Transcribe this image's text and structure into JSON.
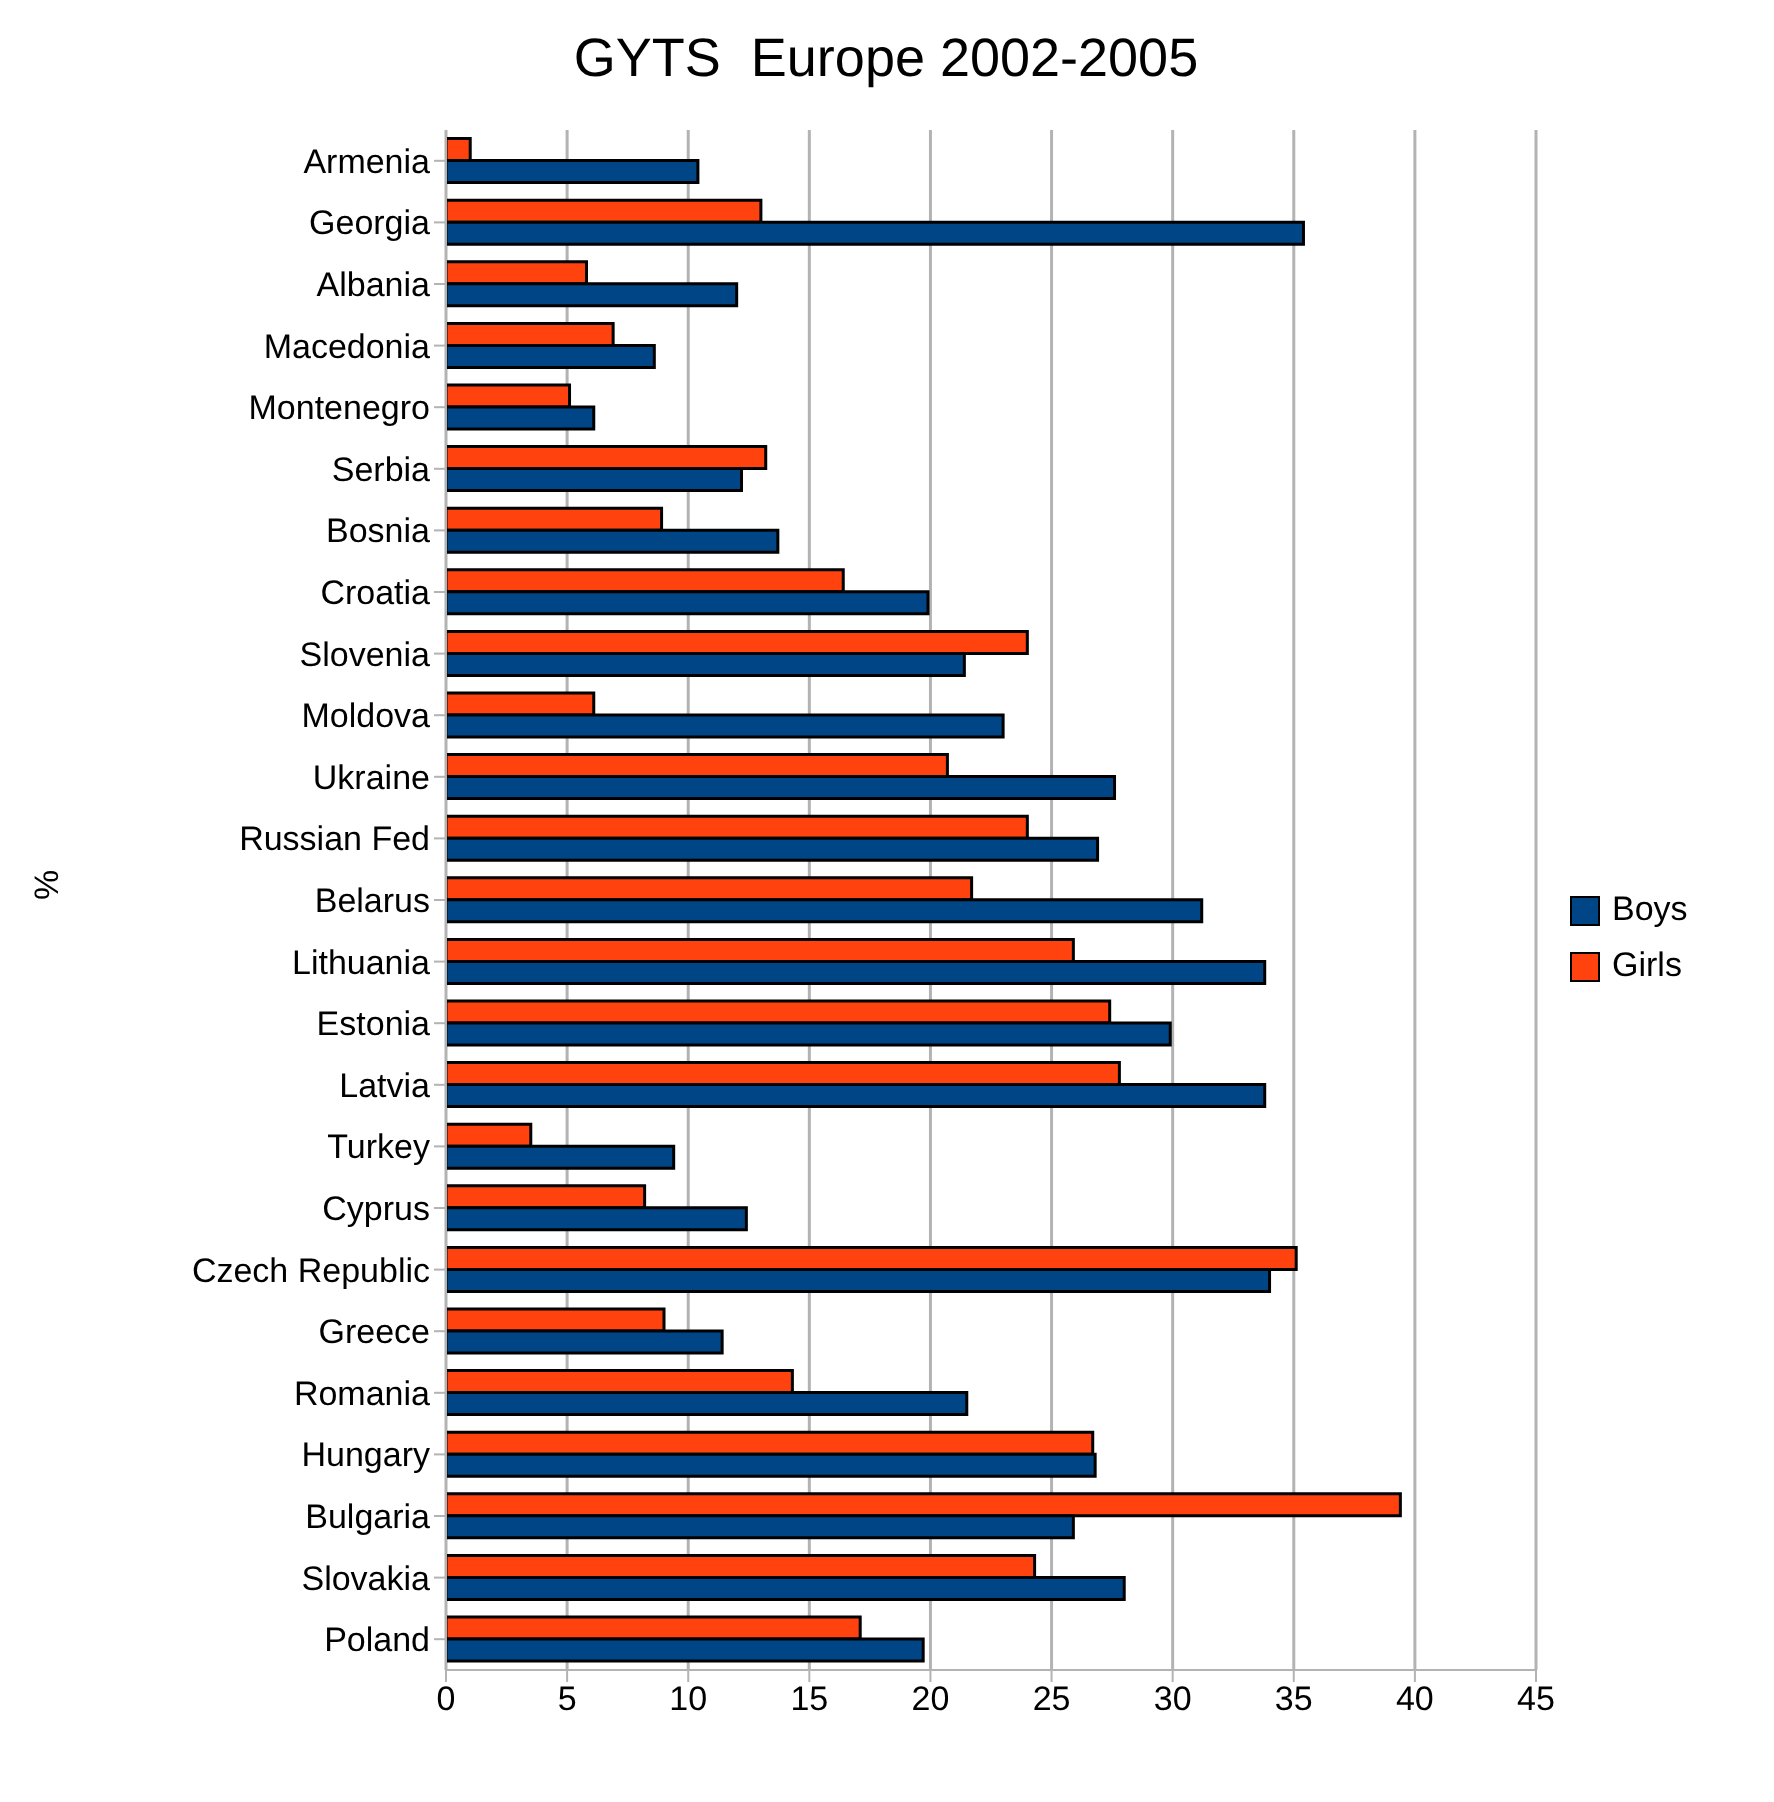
{
  "chart_data": {
    "type": "bar",
    "orientation": "horizontal",
    "title": "GYTS  Europe 2002-2005",
    "ylabel": "%",
    "categories": [
      "Armenia",
      "Georgia",
      "Albania",
      "Macedonia",
      "Montenegro",
      "Serbia",
      "Bosnia",
      "Croatia",
      "Slovenia",
      "Moldova",
      "Ukraine",
      "Russian Fed",
      "Belarus",
      "Lithuania",
      "Estonia",
      "Latvia",
      "Turkey",
      "Cyprus",
      "Czech Republic",
      "Greece",
      "Romania",
      "Hungary",
      "Bulgaria",
      "Slovakia",
      "Poland"
    ],
    "series": [
      {
        "name": "Boys",
        "color": "#004586",
        "values": [
          10.4,
          35.4,
          12.0,
          8.6,
          6.1,
          12.2,
          13.7,
          19.9,
          21.4,
          23.0,
          27.6,
          26.9,
          31.2,
          33.8,
          29.9,
          33.8,
          9.4,
          12.4,
          34.0,
          11.4,
          21.5,
          26.8,
          25.9,
          28.0,
          19.7
        ]
      },
      {
        "name": "Girls",
        "color": "#ff420e",
        "values": [
          1.0,
          13.0,
          5.8,
          6.9,
          5.1,
          13.2,
          8.9,
          16.4,
          24.0,
          6.1,
          20.7,
          24.0,
          21.7,
          25.9,
          27.4,
          27.8,
          3.5,
          8.2,
          35.1,
          9.0,
          14.3,
          26.7,
          39.4,
          24.3,
          17.1
        ]
      }
    ],
    "xlim": [
      0,
      45
    ],
    "xticks": [
      0,
      5,
      10,
      15,
      20,
      25,
      30,
      35,
      40,
      45
    ],
    "grid": "x",
    "legend": "right"
  }
}
